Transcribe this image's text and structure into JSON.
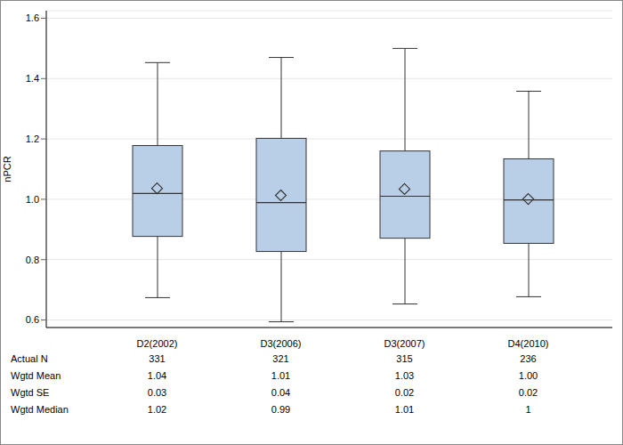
{
  "chart_data": {
    "type": "boxplot",
    "y_label": "nPCR",
    "categories": [
      "D2(2002)",
      "D3(2006)",
      "D3(2007)",
      "D4(2010)"
    ],
    "boxes": {
      "whisker_low": [
        0.674,
        0.594,
        0.653,
        0.677
      ],
      "q1": [
        0.877,
        0.827,
        0.871,
        0.854
      ],
      "median": [
        1.019,
        0.989,
        1.01,
        0.998
      ],
      "q3": [
        1.178,
        1.202,
        1.16,
        1.134
      ],
      "whisker_high": [
        1.453,
        1.47,
        1.5,
        1.358
      ],
      "mean": [
        1.036,
        1.013,
        1.034,
        1.001
      ]
    },
    "color": "#b9cfe7",
    "marker": "diamond",
    "ylim": [
      0.575,
      1.625
    ],
    "yticks": [
      0.6,
      0.8,
      {
        "value": 1,
        "label": "1.0"
      },
      1.2,
      1.4,
      1.6
    ],
    "grid": true,
    "table": {
      "rows": [
        {
          "label": "Actual N",
          "values": [
            331,
            321,
            315,
            236
          ]
        },
        {
          "label": "Wgtd Mean",
          "values": [
            "1.04",
            "1.01",
            "1.03",
            "1.00"
          ]
        },
        {
          "label": "Wgtd SE",
          "values": [
            "0.03",
            "0.04",
            "0.02",
            "0.02"
          ]
        },
        {
          "label": "Wgtd Median",
          "values": [
            "1.02",
            "0.99",
            "1.01",
            "1"
          ]
        }
      ]
    }
  }
}
